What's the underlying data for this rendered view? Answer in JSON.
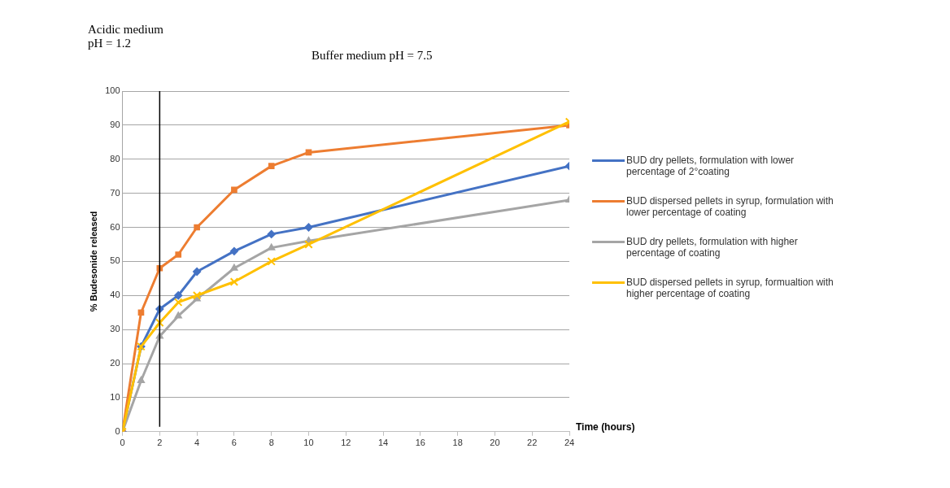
{
  "chart_data": {
    "type": "line",
    "xlabel": "Time (hours)",
    "ylabel": "% Budesonide released",
    "x": [
      0,
      1,
      2,
      3,
      4,
      6,
      8,
      10,
      24
    ],
    "series": [
      {
        "name": "BUD dry pellets, formulation with lower percentage of 2°coating",
        "color": "#4472c4",
        "marker": "diamond",
        "values": [
          0,
          25,
          36,
          40,
          47,
          53,
          58,
          60,
          78
        ]
      },
      {
        "name": "BUD dispersed pellets in syrup, formulation with lower percentage of coating",
        "color": "#ed7d31",
        "marker": "square",
        "values": [
          0,
          35,
          48,
          52,
          60,
          71,
          78,
          82,
          90
        ]
      },
      {
        "name": "BUD dry pellets, formulation with higher percentage of coating",
        "color": "#a5a5a5",
        "marker": "triangle",
        "values": [
          0,
          15,
          28,
          34,
          39,
          48,
          54,
          56,
          68
        ]
      },
      {
        "name": "BUD dispersed pellets in syrup, formualtion with higher percentage of coating",
        "color": "#ffc000",
        "marker": "cross",
        "values": [
          0,
          25,
          32,
          38,
          40,
          44,
          50,
          55,
          91
        ]
      }
    ],
    "xlim": [
      0,
      24
    ],
    "xticks": [
      0,
      2,
      4,
      6,
      8,
      10,
      12,
      14,
      16,
      18,
      20,
      22,
      24
    ],
    "ylim": [
      0,
      100
    ],
    "yticks": [
      0,
      10,
      20,
      30,
      40,
      50,
      60,
      70,
      80,
      90,
      100
    ],
    "ref_lines": [
      {
        "axis": "x",
        "value": 2,
        "color": "#000000"
      }
    ],
    "annotations": [
      "Acidic medium pH = 1.2",
      "Buffer medium pH = 7.5"
    ],
    "grid": "y",
    "legend": "right",
    "line_style": "solid"
  }
}
